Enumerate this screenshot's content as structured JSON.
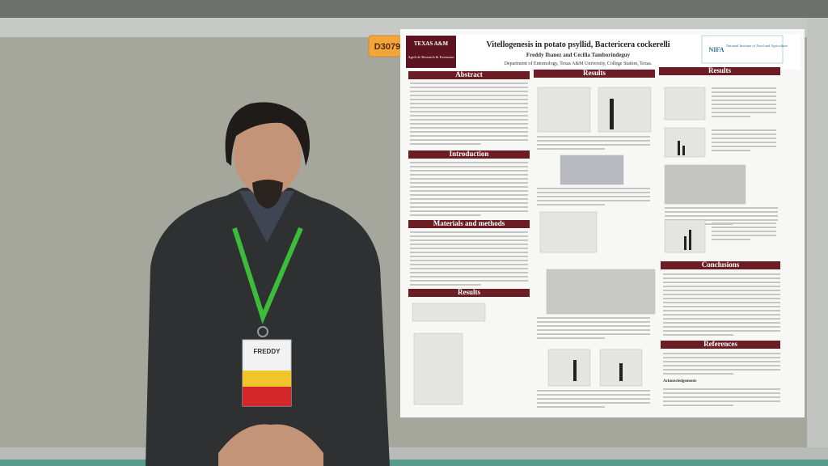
{
  "booth_label": "D3079",
  "poster": {
    "title": "Vitellogenesis in potato psyllid, Bactericera cockerelli",
    "authors": "Freddy Ibanez and Cecilia Tamborindeguy",
    "affiliation": "Department of Entomology, Texas A&M University, College Station, Texas.",
    "left_logo": "TEXAS A&M",
    "left_logo_sub": "AgriLife Research & Extension",
    "right_logo": "NIFA",
    "right_logo_sub": "National Institute of Food and Agriculture",
    "sections": [
      "Abstract",
      "Introduction",
      "Materials and methods",
      "Results",
      "Results",
      "Results",
      "Conclusions",
      "References"
    ],
    "acknowledgements": "Acknowledgements"
  },
  "badge": {
    "name": "FREDDY"
  }
}
